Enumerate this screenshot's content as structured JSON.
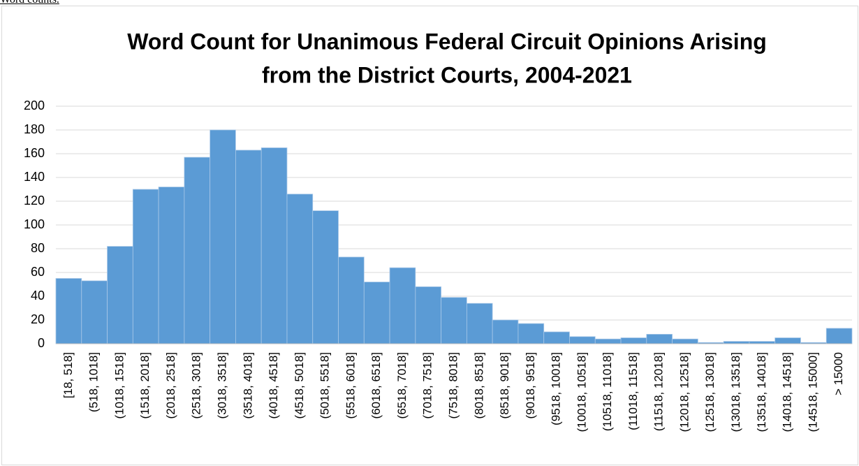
{
  "caption": "Word counts.",
  "chart_data": {
    "type": "bar",
    "title": [
      "Word Count for Unanimous Federal Circuit Opinions Arising",
      "from the District Courts, 2004-2021"
    ],
    "categories": [
      "[18, 518]",
      "(518, 1018]",
      "(1018, 1518]",
      "(1518, 2018]",
      "(2018, 2518]",
      "(2518, 3018]",
      "(3018, 3518]",
      "(3518, 4018]",
      "(4018, 4518]",
      "(4518, 5018]",
      "(5018, 5518]",
      "(5518, 6018]",
      "(6018, 6518]",
      "(6518, 7018]",
      "(7018, 7518]",
      "(7518, 8018]",
      "(8018, 8518]",
      "(8518, 9018]",
      "(9018, 9518]",
      "(9518, 10018]",
      "(10018, 10518]",
      "(10518, 11018]",
      "(11018, 11518]",
      "(11518, 12018]",
      "(12018, 12518]",
      "(12518, 13018]",
      "(13018, 13518]",
      "(13518, 14018]",
      "(14018, 14518]",
      "(14518, 15000]",
      "> 15000"
    ],
    "values": [
      55,
      53,
      82,
      130,
      132,
      157,
      180,
      163,
      165,
      126,
      112,
      73,
      52,
      64,
      48,
      39,
      34,
      20,
      17,
      10,
      6,
      4,
      5,
      8,
      4,
      1,
      2,
      2,
      5,
      1,
      13
    ],
    "color": "#5b9bd5",
    "ylim": [
      0,
      200
    ],
    "yticks": [
      0,
      20,
      40,
      60,
      80,
      100,
      120,
      140,
      160,
      180,
      200
    ],
    "grid": true
  }
}
